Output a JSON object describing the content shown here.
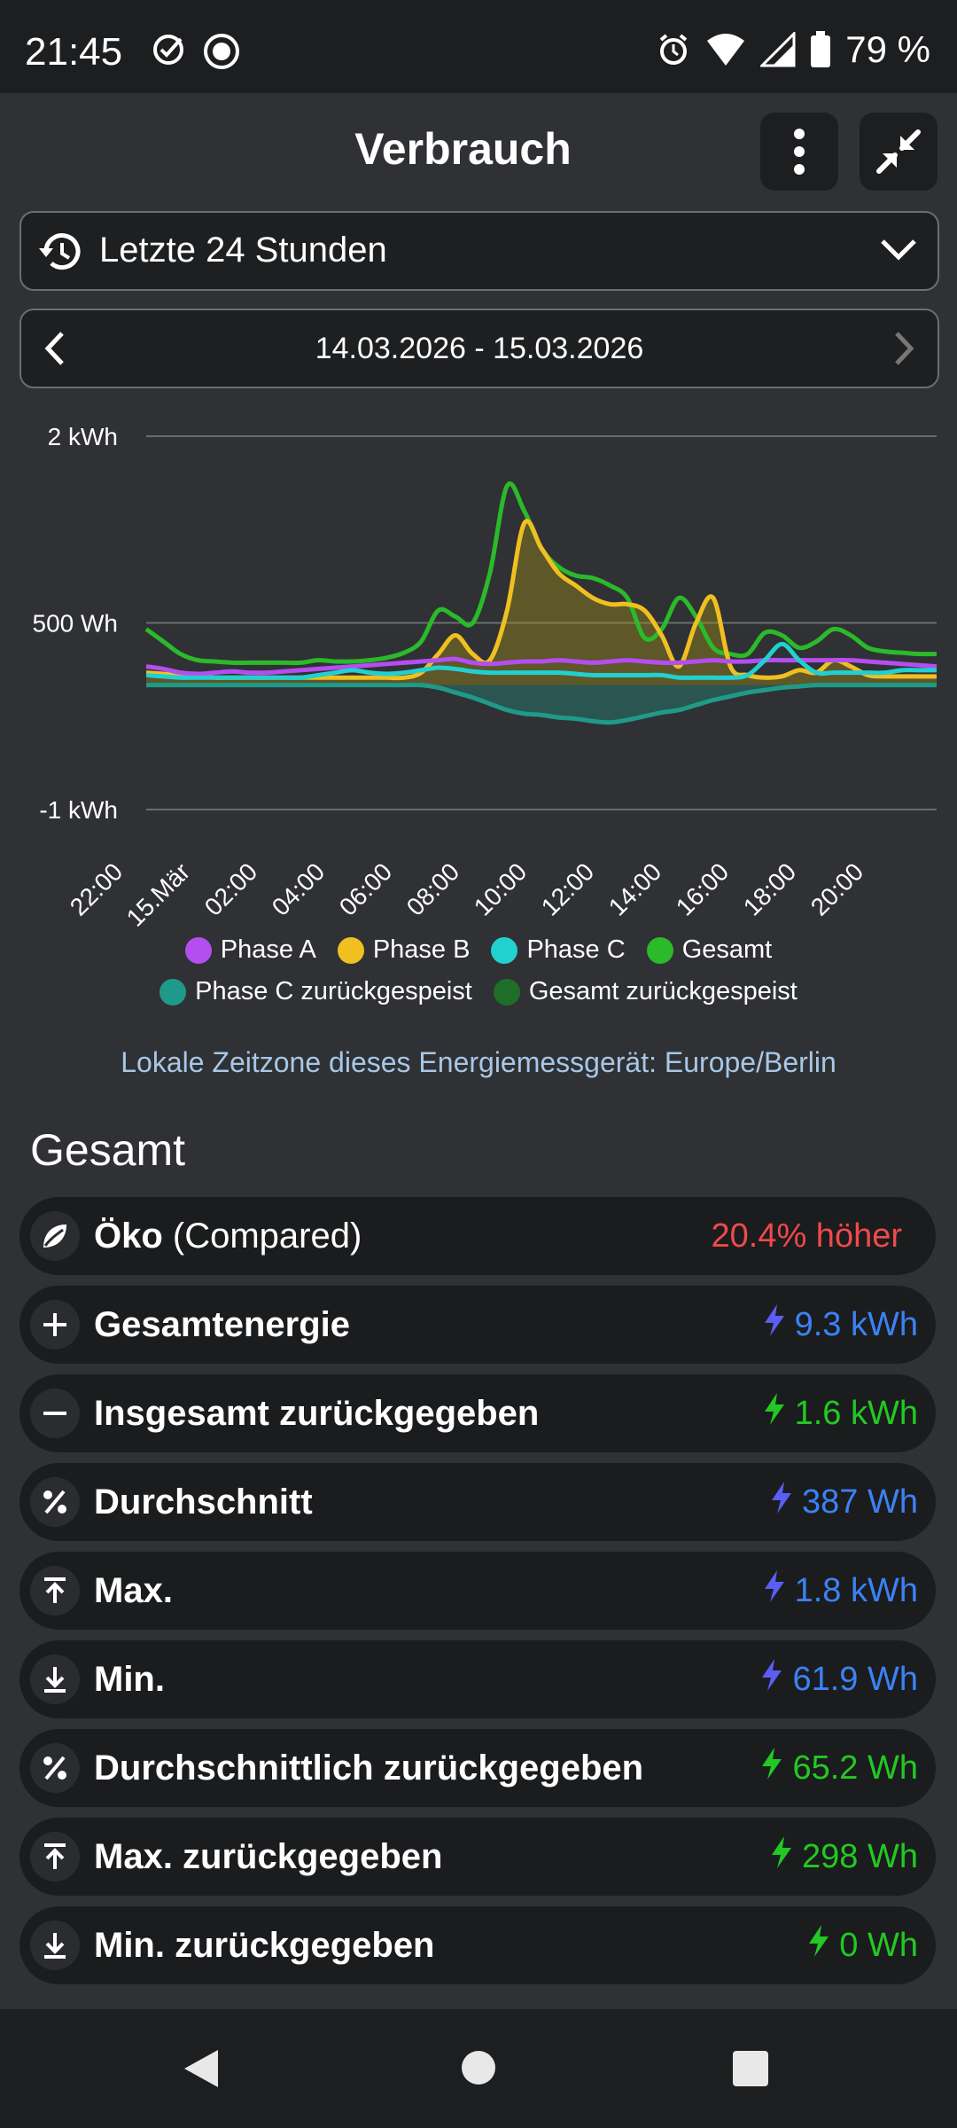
{
  "status_bar": {
    "time": "21:45",
    "battery": "79 %",
    "icons": [
      "check-circle-icon",
      "record-icon",
      "alarm-icon",
      "wifi-icon",
      "signal-icon",
      "battery-icon"
    ]
  },
  "header": {
    "title": "Verbrauch"
  },
  "period_select": {
    "label": "Letzte 24 Stunden"
  },
  "date_range": {
    "label": "14.03.2026 - 15.03.2026"
  },
  "chart_data": {
    "type": "line",
    "y_ticks": [
      "2 kWh",
      "500 Wh",
      "-1 kWh"
    ],
    "ylim": [
      -1000,
      2000
    ],
    "x_labels": [
      "22:00",
      "15.Mär",
      "02:00",
      "04:00",
      "06:00",
      "08:00",
      "10:00",
      "12:00",
      "14:00",
      "16:00",
      "18:00",
      "20:00"
    ],
    "x": [
      0,
      0.5,
      1,
      1.5,
      2,
      2.5,
      3,
      3.5,
      4,
      4.5,
      5,
      5.5,
      6,
      6.5,
      7,
      7.5,
      8,
      8.5,
      9,
      9.5,
      10,
      10.5,
      11,
      11.5,
      12,
      12.5,
      13,
      13.5,
      14,
      14.5,
      15,
      15.5,
      16,
      16.5,
      17,
      17.5,
      18,
      18.5,
      19,
      19.5,
      20,
      20.5,
      21,
      21.5,
      22,
      22.5,
      23
    ],
    "series": [
      {
        "name": "Phase A",
        "color": "#b44ef0",
        "values": [
          150,
          130,
          100,
          90,
          100,
          110,
          100,
          100,
          110,
          120,
          130,
          140,
          150,
          160,
          170,
          180,
          190,
          200,
          210,
          180,
          170,
          180,
          190,
          190,
          200,
          190,
          180,
          190,
          200,
          190,
          180,
          180,
          190,
          200,
          190,
          190,
          200,
          200,
          200,
          200,
          200,
          200,
          190,
          180,
          170,
          160,
          150
        ]
      },
      {
        "name": "Phase B",
        "color": "#f0c020",
        "values": [
          100,
          90,
          80,
          70,
          60,
          60,
          60,
          60,
          60,
          60,
          60,
          60,
          60,
          60,
          60,
          60,
          100,
          250,
          400,
          250,
          200,
          600,
          1300,
          1100,
          900,
          800,
          700,
          650,
          650,
          600,
          400,
          150,
          500,
          700,
          150,
          80,
          60,
          70,
          120,
          100,
          200,
          150,
          80,
          70,
          70,
          70,
          70
        ]
      },
      {
        "name": "Phase C",
        "color": "#22d0d0",
        "values": [
          80,
          70,
          60,
          60,
          60,
          60,
          60,
          60,
          60,
          60,
          80,
          100,
          120,
          100,
          90,
          100,
          120,
          140,
          130,
          110,
          100,
          100,
          100,
          100,
          100,
          90,
          80,
          80,
          80,
          80,
          80,
          60,
          60,
          60,
          60,
          80,
          200,
          330,
          200,
          100,
          100,
          100,
          100,
          100,
          120,
          120,
          120
        ]
      },
      {
        "name": "Gesamt",
        "color": "#2aba2a",
        "values": [
          450,
          350,
          250,
          200,
          190,
          180,
          180,
          180,
          180,
          180,
          200,
          190,
          190,
          200,
          220,
          260,
          350,
          600,
          550,
          500,
          900,
          1600,
          1400,
          1100,
          950,
          880,
          860,
          800,
          700,
          380,
          450,
          700,
          550,
          300,
          250,
          250,
          420,
          400,
          300,
          350,
          450,
          400,
          300,
          270,
          260,
          250,
          250
        ]
      },
      {
        "name": "Phase C zurückgespeist",
        "color": "#1f9a8a",
        "values": [
          0,
          0,
          0,
          0,
          0,
          0,
          0,
          0,
          0,
          0,
          0,
          0,
          0,
          0,
          0,
          0,
          0,
          -20,
          -60,
          -100,
          -150,
          -200,
          -230,
          -240,
          -260,
          -270,
          -290,
          -300,
          -280,
          -250,
          -220,
          -200,
          -160,
          -120,
          -90,
          -60,
          -40,
          -20,
          -10,
          0,
          0,
          0,
          0,
          0,
          0,
          0,
          0
        ]
      },
      {
        "name": "Gesamt zurückgespeist",
        "color": "#1e6e2a",
        "values": [
          0,
          0,
          0,
          0,
          0,
          0,
          0,
          0,
          0,
          0,
          0,
          0,
          0,
          0,
          0,
          0,
          0,
          -20,
          -60,
          -100,
          -150,
          -200,
          -230,
          -240,
          -260,
          -270,
          -290,
          -300,
          -280,
          -250,
          -220,
          -200,
          -160,
          -120,
          -90,
          -60,
          -40,
          -20,
          -10,
          0,
          0,
          0,
          0,
          0,
          0,
          0,
          0
        ]
      }
    ],
    "legend_rows": [
      [
        {
          "name": "Phase A",
          "color": "#b44ef0"
        },
        {
          "name": "Phase B",
          "color": "#f0c020"
        },
        {
          "name": "Phase C",
          "color": "#22d0d0"
        },
        {
          "name": "Gesamt",
          "color": "#2aba2a"
        }
      ],
      [
        {
          "name": "Phase C zurückgespeist",
          "color": "#1f9a8a"
        },
        {
          "name": "Gesamt zurückgespeist",
          "color": "#1e6e2a"
        }
      ]
    ],
    "grid": true
  },
  "timezone_note": "Lokale Zeitzone dieses Energiemessgerät: Europe/Berlin",
  "section": {
    "title": "Gesamt",
    "rows": [
      {
        "icon": "leaf-icon",
        "label": "Öko",
        "label_suffix": " (Compared)",
        "value": "20.4% höher",
        "value_color": "#ef4a4a",
        "bolt": false
      },
      {
        "icon": "plus-icon",
        "label": "Gesamtenergie",
        "value": "9.3 kWh",
        "value_color": "#3b82f6",
        "bolt": true,
        "bolt_color": "#5b5ef5"
      },
      {
        "icon": "minus-icon",
        "label": "Insgesamt zurückgegeben",
        "value": "1.6 kWh",
        "value_color": "#22c922",
        "bolt": true,
        "bolt_color": "#22c922"
      },
      {
        "icon": "percent-icon",
        "label": "Durchschnitt",
        "value": "387 Wh",
        "value_color": "#3b82f6",
        "bolt": true,
        "bolt_color": "#5b5ef5"
      },
      {
        "icon": "arrow-up-to-line-icon",
        "label": "Max.",
        "value": "1.8 kWh",
        "value_color": "#3b82f6",
        "bolt": true,
        "bolt_color": "#5b5ef5"
      },
      {
        "icon": "arrow-down-to-line-icon",
        "label": "Min.",
        "value": "61.9 Wh",
        "value_color": "#3b82f6",
        "bolt": true,
        "bolt_color": "#5b5ef5"
      },
      {
        "icon": "percent-icon",
        "label": "Durchschnittlich zurückgegeben",
        "value": "65.2 Wh",
        "value_color": "#22c922",
        "bolt": true,
        "bolt_color": "#22c922"
      },
      {
        "icon": "arrow-up-to-line-icon",
        "label": "Max. zurückgegeben",
        "value": "298 Wh",
        "value_color": "#22c922",
        "bolt": true,
        "bolt_color": "#22c922"
      },
      {
        "icon": "arrow-down-to-line-icon",
        "label": "Min. zurückgegeben",
        "value": "0 Wh",
        "value_color": "#22c922",
        "bolt": true,
        "bolt_color": "#22c922"
      }
    ]
  },
  "nav": {
    "icons": [
      "back-icon",
      "home-icon",
      "recents-icon"
    ]
  }
}
